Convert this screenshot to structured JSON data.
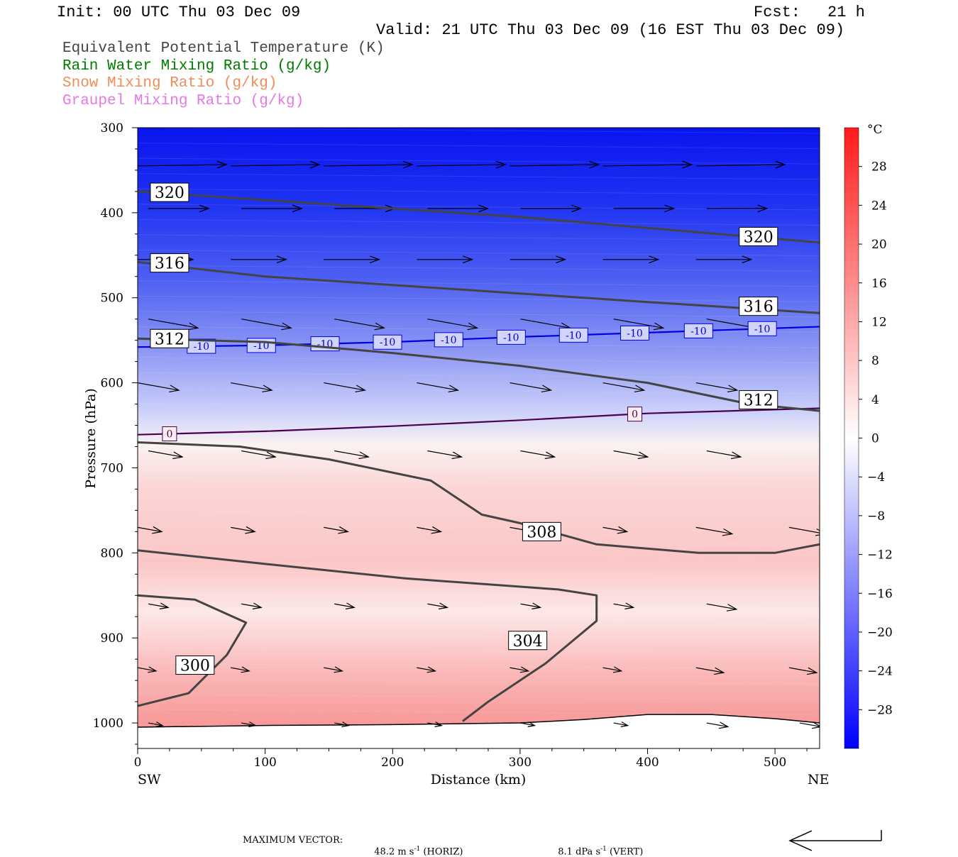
{
  "header": {
    "init": "Init: 00 UTC Thu 03 Dec 09",
    "fcst_label": "Fcst:",
    "fcst_value": "21 h",
    "valid": "Valid: 21 UTC Thu 03 Dec 09 (16 EST Thu 03 Dec 09)"
  },
  "legend": [
    {
      "label": "Equivalent Potential Temperature (K)",
      "color": "#444444"
    },
    {
      "label": "Rain Water Mixing Ratio (g/kg)",
      "color": "#007a00"
    },
    {
      "label": "Snow Mixing Ratio (g/kg)",
      "color": "#f08c5a"
    },
    {
      "label": "Graupel Mixing Ratio (g/kg)",
      "color": "#e678e6"
    }
  ],
  "chart_data": {
    "type": "cross-section",
    "xlabel": "Distance (km)",
    "ylabel": "Pressure (hPa)",
    "xlim": [
      0,
      535
    ],
    "ylim": [
      1030,
      300
    ],
    "xticks": [
      0,
      100,
      200,
      300,
      400,
      500
    ],
    "yticks": [
      300,
      400,
      500,
      600,
      700,
      800,
      900,
      1000
    ],
    "x_endpoints": {
      "left": "SW",
      "right": "NE"
    },
    "colorbar": {
      "unit": "°C",
      "range": [
        -32,
        32
      ],
      "ticks": [
        28,
        24,
        20,
        16,
        12,
        8,
        4,
        0,
        -4,
        -8,
        -12,
        -16,
        -20,
        -24,
        -28
      ]
    },
    "theta_e_contours": [
      {
        "level": 320,
        "label": "320",
        "points": [
          [
            0,
            375
          ],
          [
            100,
            385
          ],
          [
            200,
            395
          ],
          [
            300,
            405
          ],
          [
            400,
            418
          ],
          [
            535,
            435
          ]
        ]
      },
      {
        "level": 316,
        "label": "316",
        "points": [
          [
            0,
            458
          ],
          [
            100,
            475
          ],
          [
            200,
            485
          ],
          [
            300,
            495
          ],
          [
            400,
            505
          ],
          [
            535,
            518
          ]
        ]
      },
      {
        "level": 312,
        "label": "312",
        "points": [
          [
            0,
            548
          ],
          [
            100,
            552
          ],
          [
            200,
            565
          ],
          [
            300,
            580
          ],
          [
            400,
            600
          ],
          [
            480,
            625
          ],
          [
            535,
            633
          ]
        ]
      },
      {
        "level": 308,
        "label": "308",
        "points": [
          [
            0,
            670
          ],
          [
            80,
            675
          ],
          [
            150,
            690
          ],
          [
            230,
            715
          ],
          [
            270,
            755
          ],
          [
            300,
            765
          ],
          [
            360,
            790
          ],
          [
            440,
            800
          ],
          [
            500,
            800
          ],
          [
            535,
            790
          ]
        ]
      },
      {
        "level": 304,
        "label": "304",
        "points": [
          [
            0,
            797
          ],
          [
            100,
            813
          ],
          [
            210,
            830
          ],
          [
            330,
            843
          ],
          [
            360,
            850
          ],
          [
            360,
            880
          ],
          [
            320,
            930
          ],
          [
            275,
            975
          ],
          [
            255,
            998
          ]
        ]
      },
      {
        "level": 300,
        "label": "300",
        "points": [
          [
            0,
            850
          ],
          [
            45,
            855
          ],
          [
            85,
            882
          ],
          [
            70,
            920
          ],
          [
            40,
            965
          ],
          [
            0,
            980
          ]
        ]
      }
    ],
    "isotherms": [
      {
        "level": -10,
        "label": "-10",
        "color": "#0000dd",
        "points": [
          [
            0,
            558
          ],
          [
            100,
            556
          ],
          [
            200,
            552
          ],
          [
            300,
            546
          ],
          [
            400,
            541
          ],
          [
            535,
            534
          ]
        ]
      },
      {
        "level": 0,
        "label": "0",
        "color": "#4b0050",
        "points": [
          [
            0,
            661
          ],
          [
            100,
            657
          ],
          [
            200,
            651
          ],
          [
            300,
            644
          ],
          [
            400,
            636
          ],
          [
            535,
            630
          ]
        ]
      }
    ],
    "terrain_hPa": [
      [
        0,
        1005
      ],
      [
        100,
        1003
      ],
      [
        200,
        1002
      ],
      [
        300,
        1000
      ],
      [
        350,
        996
      ],
      [
        400,
        990
      ],
      [
        450,
        990
      ],
      [
        500,
        995
      ],
      [
        535,
        1000
      ]
    ],
    "vector_scale_note": "MAXIMUM VECTOR: 48.2 m s-1 (HORIZ)   8.1 dPa s-1 (VERT)"
  },
  "footer": {
    "max_vector_label": "MAXIMUM VECTOR:",
    "horiz_value": "48.2 m s",
    "horiz_unit": "(HORIZ)",
    "vert_value": "8.1 dPa s",
    "vert_unit": "(VERT)",
    "superscript": "-1"
  }
}
